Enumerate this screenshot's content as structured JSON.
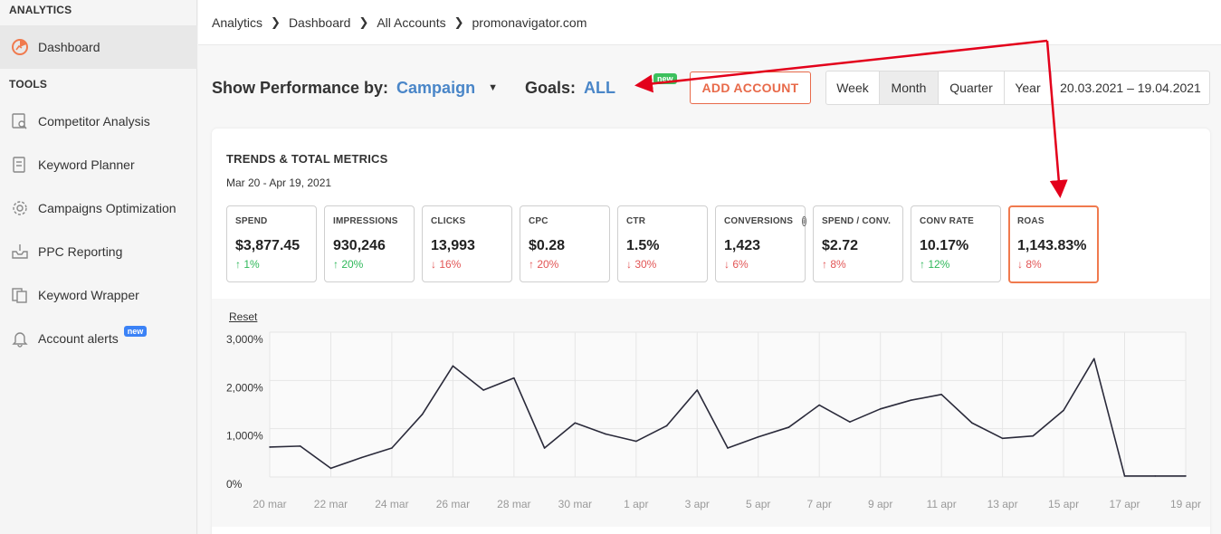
{
  "sidebar": {
    "analytics_heading": "ANALYTICS",
    "dashboard": "Dashboard",
    "tools_heading": "TOOLS",
    "items": [
      {
        "label": "Competitor Analysis",
        "icon": "search-doc-icon"
      },
      {
        "label": "Keyword Planner",
        "icon": "document-icon"
      },
      {
        "label": "Campaigns Optimization",
        "icon": "gear-icon"
      },
      {
        "label": "PPC Reporting",
        "icon": "inbox-icon"
      },
      {
        "label": "Keyword Wrapper",
        "icon": "pages-icon"
      },
      {
        "label": "Account alerts",
        "icon": "bell-icon",
        "badge": "new"
      }
    ]
  },
  "breadcrumb": [
    "Analytics",
    "Dashboard",
    "All Accounts",
    "promonavigator.com"
  ],
  "toolbar": {
    "show_label": "Show Performance by:",
    "show_value": "Campaign",
    "goals_label": "Goals:",
    "goals_value": "ALL",
    "goals_badge": "new",
    "add_account": "ADD ACCOUNT",
    "periods": [
      "Week",
      "Month",
      "Quarter",
      "Year"
    ],
    "selected_period": "Month",
    "date_range": "20.03.2021 – 19.04.2021"
  },
  "card": {
    "title": "TRENDS & TOTAL METRICS",
    "subtitle": "Mar 20 - Apr 19, 2021",
    "reset": "Reset"
  },
  "metrics": [
    {
      "label": "SPEND",
      "value": "$3,877.45",
      "delta": "↑ 1%",
      "trend": "good"
    },
    {
      "label": "IMPRESSIONS",
      "value": "930,246",
      "delta": "↑ 20%",
      "trend": "good"
    },
    {
      "label": "CLICKS",
      "value": "13,993",
      "delta": "↓ 16%",
      "trend": "bad"
    },
    {
      "label": "CPC",
      "value": "$0.28",
      "delta": "↑ 20%",
      "trend": "bad"
    },
    {
      "label": "CTR",
      "value": "1.5%",
      "delta": "↓ 30%",
      "trend": "bad"
    },
    {
      "label": "CONVERSIONS",
      "value": "1,423",
      "delta": "↓ 6%",
      "trend": "bad",
      "info": "i"
    },
    {
      "label": "SPEND / CONV.",
      "value": "$2.72",
      "delta": "↑ 8%",
      "trend": "bad"
    },
    {
      "label": "CONV RATE",
      "value": "10.17%",
      "delta": "↑ 12%",
      "trend": "good"
    },
    {
      "label": "ROAS",
      "value": "1,143.83%",
      "delta": "↓ 8%",
      "trend": "bad",
      "highlight": true
    }
  ],
  "colors": {
    "accent": "#4a86c8",
    "orange": "#f07a4e",
    "good": "#2fb85a",
    "bad": "#e25555",
    "annotation": "#e3001b"
  },
  "chart_data": {
    "type": "line",
    "x": [
      "20 mar",
      "21 mar",
      "22 mar",
      "23 mar",
      "24 mar",
      "25 mar",
      "26 mar",
      "27 mar",
      "28 mar",
      "29 mar",
      "30 mar",
      "31 mar",
      "1 apr",
      "2 apr",
      "3 apr",
      "4 apr",
      "5 apr",
      "6 apr",
      "7 apr",
      "8 apr",
      "9 apr",
      "10 apr",
      "11 apr",
      "12 apr",
      "13 apr",
      "14 apr",
      "15 apr",
      "16 apr",
      "17 apr",
      "18 apr",
      "19 apr"
    ],
    "x_tick_labels": [
      "20 mar",
      "22 mar",
      "24 mar",
      "26 mar",
      "28 mar",
      "30 mar",
      "1 apr",
      "3 apr",
      "5 apr",
      "7 apr",
      "9 apr",
      "11 apr",
      "13 apr",
      "15 apr",
      "17 apr",
      "19 apr"
    ],
    "series": [
      {
        "values": [
          620,
          640,
          180,
          400,
          600,
          1300,
          2300,
          1800,
          2050,
          600,
          1120,
          890,
          740,
          1060,
          1800,
          600,
          830,
          1030,
          1490,
          1140,
          1410,
          1590,
          1710,
          1120,
          800,
          850,
          1380,
          2450,
          20,
          20,
          20
        ]
      }
    ],
    "y_ticks": [
      "0%",
      "1,000%",
      "2,000%",
      "3,000%"
    ],
    "ylim": [
      0,
      3000
    ],
    "grid": true,
    "legend": "none"
  }
}
